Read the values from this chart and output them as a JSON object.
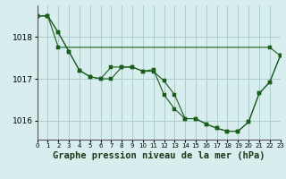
{
  "background_color": "#d8eeee",
  "grid_color": "#aacccc",
  "line_color": "#1a5c1a",
  "xlabel": "Graphe pression niveau de la mer (hPa)",
  "xlabel_fontsize": 7.5,
  "xlim": [
    0,
    23
  ],
  "ylim": [
    1015.55,
    1018.75
  ],
  "yticks": [
    1016,
    1017,
    1018
  ],
  "xtick_labels": [
    "0",
    "1",
    "2",
    "3",
    "4",
    "5",
    "6",
    "7",
    "8",
    "9",
    "10",
    "11",
    "12",
    "13",
    "14",
    "15",
    "16",
    "17",
    "18",
    "19",
    "20",
    "21",
    "22",
    "23"
  ],
  "series1_x": [
    0,
    1,
    2,
    3,
    4,
    5,
    6,
    7,
    8,
    9,
    10,
    11,
    12,
    13,
    14,
    15,
    16,
    17,
    18,
    19,
    20,
    21,
    22,
    23
  ],
  "series1_y": [
    1018.5,
    1018.5,
    1018.1,
    1017.65,
    1017.2,
    1017.05,
    1017.0,
    1017.28,
    1017.28,
    1017.28,
    1017.18,
    1017.22,
    1016.62,
    1016.28,
    1016.05,
    1016.05,
    1015.92,
    1015.82,
    1015.75,
    1015.75,
    1015.97,
    1016.65,
    1016.92,
    1017.55
  ],
  "series2_x": [
    0,
    1,
    2,
    3,
    4,
    5,
    6,
    7,
    8,
    9,
    10,
    11,
    12,
    13,
    14,
    15,
    16,
    17,
    18,
    19,
    20,
    21,
    22,
    23
  ],
  "series2_y": [
    1018.5,
    1018.5,
    1018.1,
    1017.65,
    1017.2,
    1017.05,
    1017.0,
    1017.0,
    1017.28,
    1017.28,
    1017.18,
    1017.18,
    1016.95,
    1016.62,
    1016.05,
    1016.05,
    1015.92,
    1015.82,
    1015.75,
    1015.75,
    1015.97,
    1016.65,
    1016.92,
    1017.55
  ],
  "series3_x": [
    0,
    1,
    2,
    22,
    23
  ],
  "series3_y": [
    1018.5,
    1018.5,
    1017.75,
    1017.75,
    1017.55
  ]
}
